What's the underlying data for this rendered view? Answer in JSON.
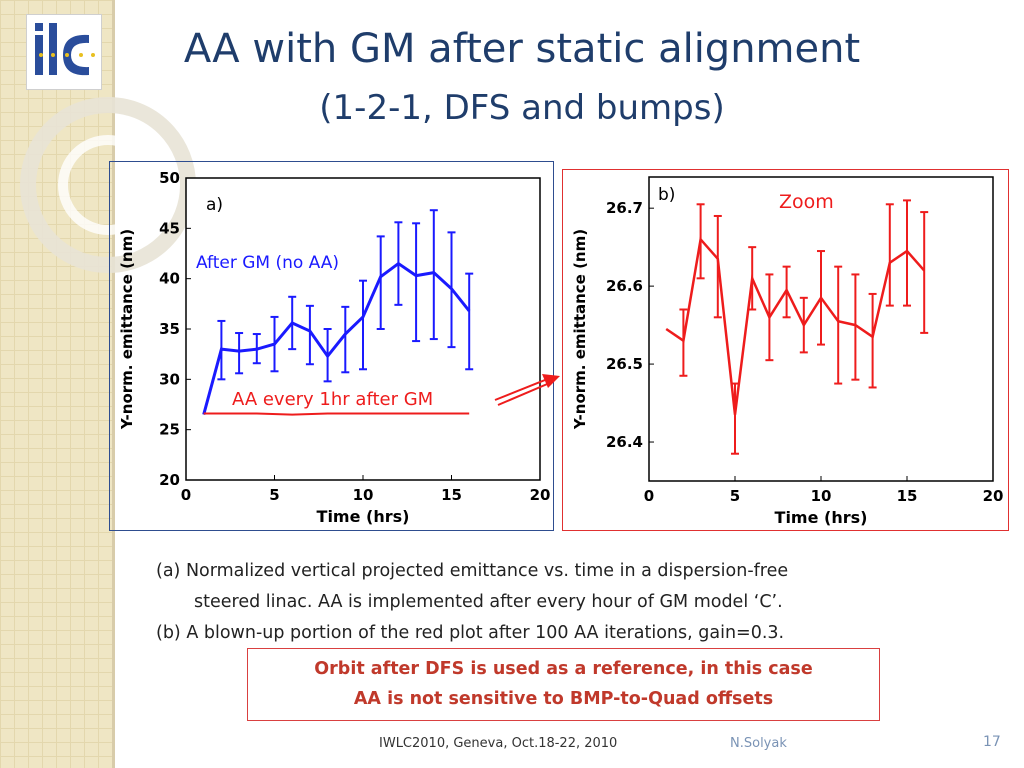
{
  "slide": {
    "title_line1": "AA with GM after static alignment",
    "title_line2": "(1-2-1, DFS and bumps)",
    "logo_text": "ilc"
  },
  "colors": {
    "title": "#1f3d6b",
    "blue_series": "#1a1aff",
    "red_series": "#ee1c1c",
    "note_text": "#c0392b"
  },
  "chart_data": [
    {
      "type": "line",
      "panel_label": "a)",
      "xlabel": "Time (hrs)",
      "ylabel": "Y-norm. emittance (nm)",
      "xlim": [
        0,
        20
      ],
      "ylim": [
        20,
        50
      ],
      "xticks": [
        0,
        5,
        10,
        15,
        20
      ],
      "yticks": [
        20,
        25,
        30,
        35,
        40,
        45,
        50
      ],
      "annotations": [
        "After GM (no AA)",
        "AA every 1hr after GM"
      ],
      "series": [
        {
          "name": "After GM (no AA)",
          "color": "#1a1aff",
          "x": [
            1,
            2,
            3,
            4,
            5,
            6,
            7,
            8,
            9,
            10,
            11,
            12,
            13,
            14,
            15,
            16
          ],
          "y": [
            26.5,
            33,
            32.8,
            33,
            33.5,
            35.6,
            34.8,
            32.3,
            34.5,
            36.2,
            40.2,
            41.5,
            40.3,
            40.6,
            39,
            36.8
          ],
          "err_low": [
            null,
            30,
            30.6,
            31.6,
            30.8,
            33,
            31.5,
            29.8,
            30.7,
            31,
            35,
            37.4,
            33.8,
            34,
            33.2,
            31
          ],
          "err_high": [
            null,
            35.8,
            34.6,
            34.5,
            36.2,
            38.2,
            37.3,
            35,
            37.2,
            39.8,
            44.2,
            45.6,
            45.5,
            46.8,
            44.6,
            40.5
          ]
        },
        {
          "name": "AA every 1hr after GM",
          "color": "#ee1c1c",
          "x": [
            1,
            2,
            4,
            6,
            8,
            10,
            12,
            14,
            16
          ],
          "y": [
            26.6,
            26.6,
            26.6,
            26.5,
            26.6,
            26.6,
            26.6,
            26.6,
            26.6
          ]
        }
      ]
    },
    {
      "type": "line",
      "panel_label": "b)",
      "title": "Zoom",
      "xlabel": "Time (hrs)",
      "ylabel": "Y-norm. emittance (nm)",
      "xlim": [
        0,
        20
      ],
      "ylim": [
        26.35,
        26.74
      ],
      "xticks": [
        0,
        5,
        10,
        15,
        20
      ],
      "ytick_labels": [
        "26.4",
        "26.5",
        "26.6",
        "26.7"
      ],
      "series": [
        {
          "color": "#ee1c1c",
          "x": [
            1,
            2,
            3,
            4,
            5,
            6,
            7,
            8,
            9,
            10,
            11,
            12,
            13,
            14,
            15,
            16
          ],
          "y": [
            26.545,
            26.53,
            26.66,
            26.635,
            26.435,
            26.61,
            26.56,
            26.595,
            26.55,
            26.585,
            26.555,
            26.55,
            26.535,
            26.63,
            26.645,
            26.62
          ],
          "err_low": [
            null,
            26.485,
            26.61,
            26.56,
            26.385,
            26.57,
            26.505,
            26.56,
            26.515,
            26.525,
            26.475,
            26.48,
            26.47,
            26.575,
            26.575,
            26.54
          ],
          "err_high": [
            null,
            26.57,
            26.705,
            26.69,
            26.475,
            26.65,
            26.615,
            26.625,
            26.585,
            26.645,
            26.625,
            26.615,
            26.59,
            26.705,
            26.71,
            26.695
          ]
        }
      ]
    }
  ],
  "caption": {
    "line_a1": "(a)  Normalized vertical projected emittance vs. time in a dispersion-free",
    "line_a2": "steered linac.  AA is implemented after every hour of GM model  ‘C’.",
    "line_b": "(b)  A blown-up portion of the red plot after 100 AA iterations,  gain=0.3."
  },
  "note": {
    "line1": "Orbit after DFS is used as a reference, in this case",
    "line2": "AA is not sensitive to BMP-to-Quad offsets"
  },
  "footer": {
    "event": "IWLC2010, Geneva, Oct.18-22, 2010",
    "author": "N.Solyak",
    "page": "17"
  }
}
